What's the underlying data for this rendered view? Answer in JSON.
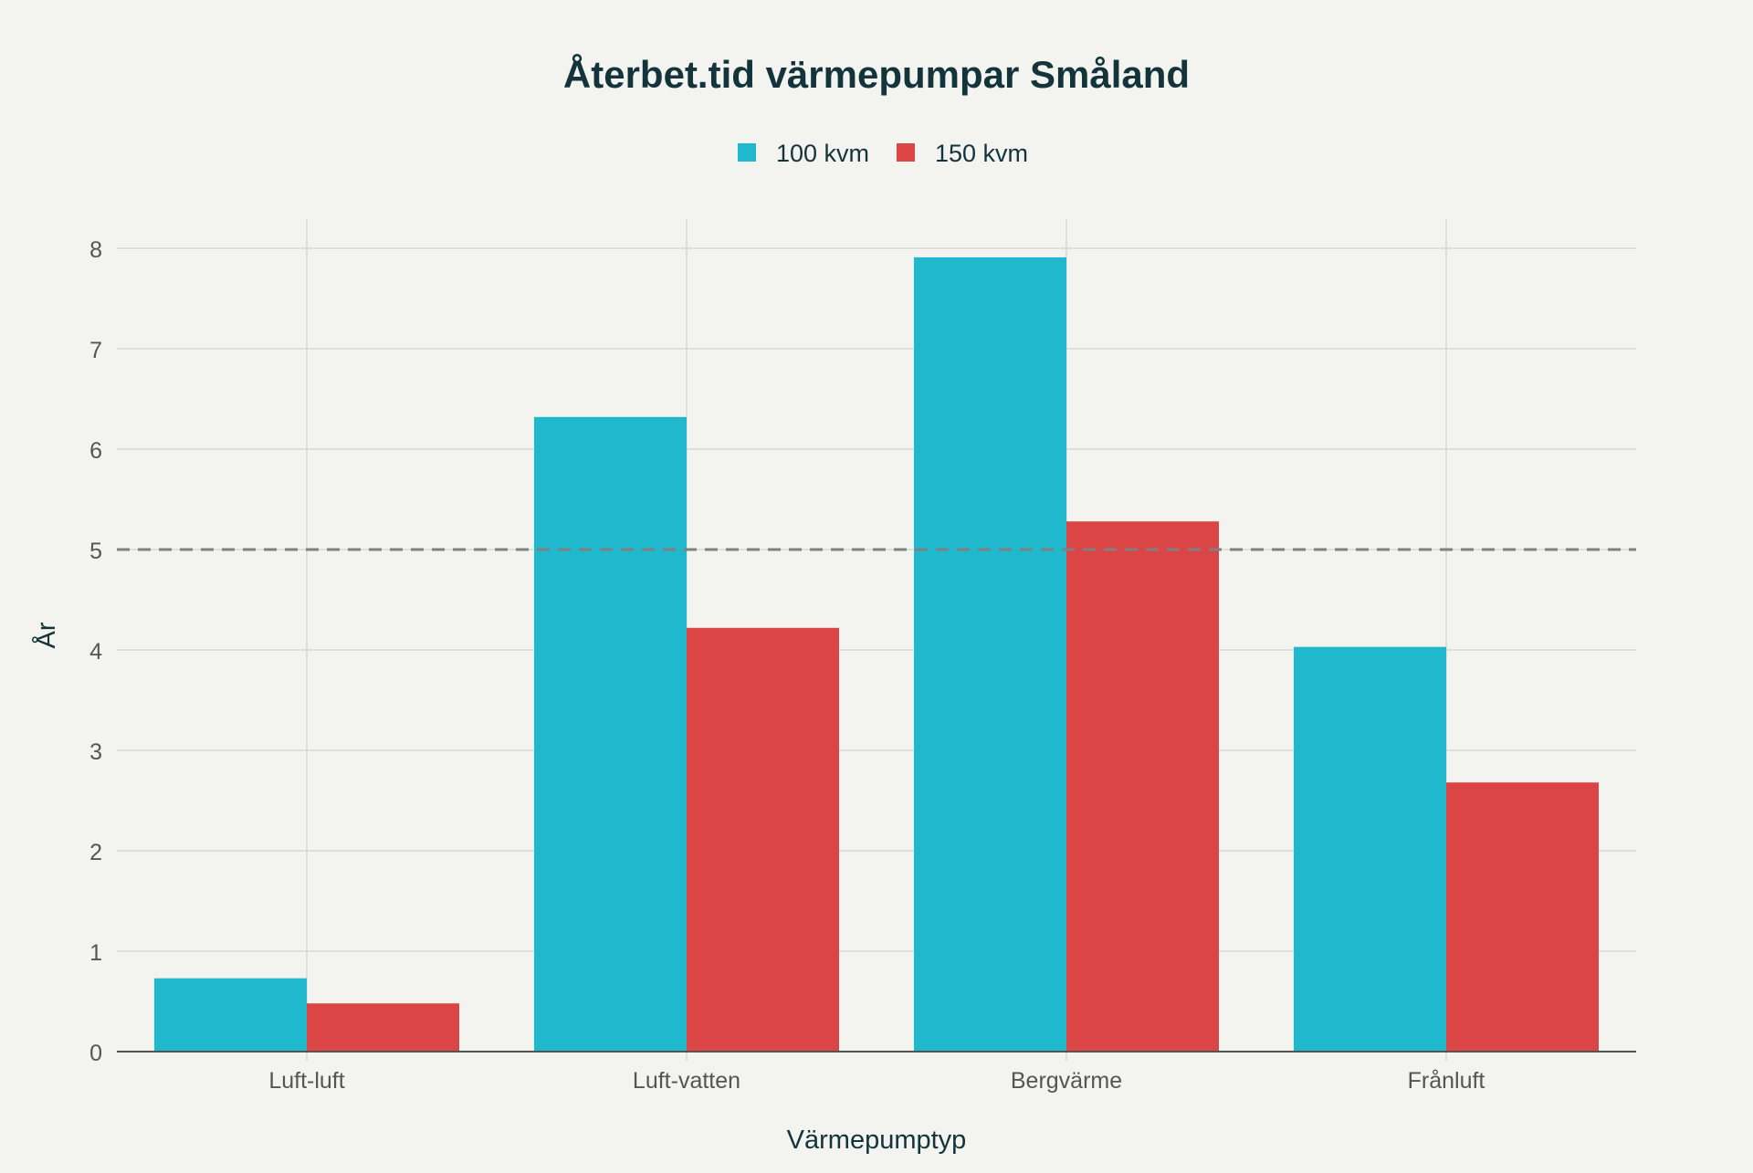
{
  "chart_data": {
    "type": "bar",
    "title": "Återbet.tid värmepumpar Småland",
    "xlabel": "Värmepumptyp",
    "ylabel": "År",
    "categories": [
      "Luft-luft",
      "Luft-vatten",
      "Bergvärme",
      "Frånluft"
    ],
    "series": [
      {
        "name": "100 kvm",
        "color": "#1fb8cd",
        "values": [
          0.73,
          6.32,
          7.91,
          4.03
        ]
      },
      {
        "name": "150 kvm",
        "color": "#db4545",
        "values": [
          0.48,
          4.22,
          5.28,
          2.68
        ]
      }
    ],
    "ylim": [
      0,
      8.3
    ],
    "yticks": [
      0,
      1,
      2,
      3,
      4,
      5,
      6,
      7,
      8
    ],
    "reference_line": {
      "y": 5,
      "style": "dashed",
      "color": "#808080"
    },
    "grid": true,
    "legend": "top-center"
  }
}
